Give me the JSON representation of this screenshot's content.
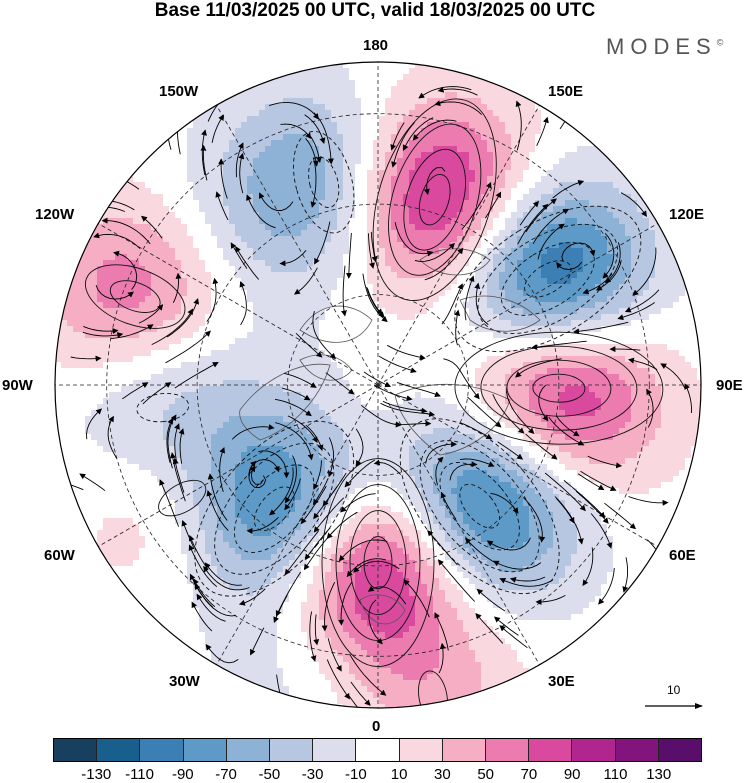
{
  "title": "Base 11/03/2025 00 UTC, valid 18/03/2025 00 UTC",
  "brand": "MODES",
  "brand_mark": "©",
  "meridian_labels": {
    "m180": "180",
    "m150e": "150E",
    "m120e": "120E",
    "m90e": "90E",
    "m60e": "60E",
    "m30e": "30E",
    "m0": "0",
    "m30w": "30W",
    "m60w": "60W",
    "m90w": "90W",
    "m120w": "120W",
    "m150w": "150W"
  },
  "reference_vector": {
    "label": "10"
  },
  "colorbar": {
    "colors": [
      "#16405e",
      "#185f8e",
      "#3b7fb4",
      "#5e9ac8",
      "#8eb2d6",
      "#b7c6e1",
      "#dcdded",
      "#ffffff",
      "#f9d8df",
      "#f5aec4",
      "#ec7bb0",
      "#d94a9f",
      "#b1258f",
      "#83147e",
      "#5a0e6c"
    ],
    "ticks": [
      "-130",
      "-110",
      "-90",
      "-70",
      "-50",
      "-30",
      "-10",
      "10",
      "30",
      "50",
      "70",
      "90",
      "110",
      "130"
    ]
  },
  "anomaly_centers": [
    {
      "lon": 163,
      "dist": 0.6,
      "value": 125
    },
    {
      "lon": 122,
      "dist": 0.62,
      "value": -140
    },
    {
      "lon": 89,
      "dist": 0.56,
      "value": 120
    },
    {
      "lon": 40,
      "dist": 0.49,
      "value": -130
    },
    {
      "lon": 0,
      "dist": 0.55,
      "value": 130
    },
    {
      "lon": -40,
      "dist": 0.5,
      "value": -125
    },
    {
      "lon": -60,
      "dist": 0.7,
      "value": 50
    },
    {
      "lon": -84,
      "dist": 0.67,
      "value": -55
    },
    {
      "lon": -110,
      "dist": 0.8,
      "value": 70
    },
    {
      "lon": -165,
      "dist": 0.65,
      "value": -75
    },
    {
      "lon": -140,
      "dist": 0.63,
      "value": -20
    },
    {
      "lon": 10,
      "dist": 0.98,
      "value": 35
    },
    {
      "lon": -15,
      "dist": 0.95,
      "value": -20
    }
  ]
}
